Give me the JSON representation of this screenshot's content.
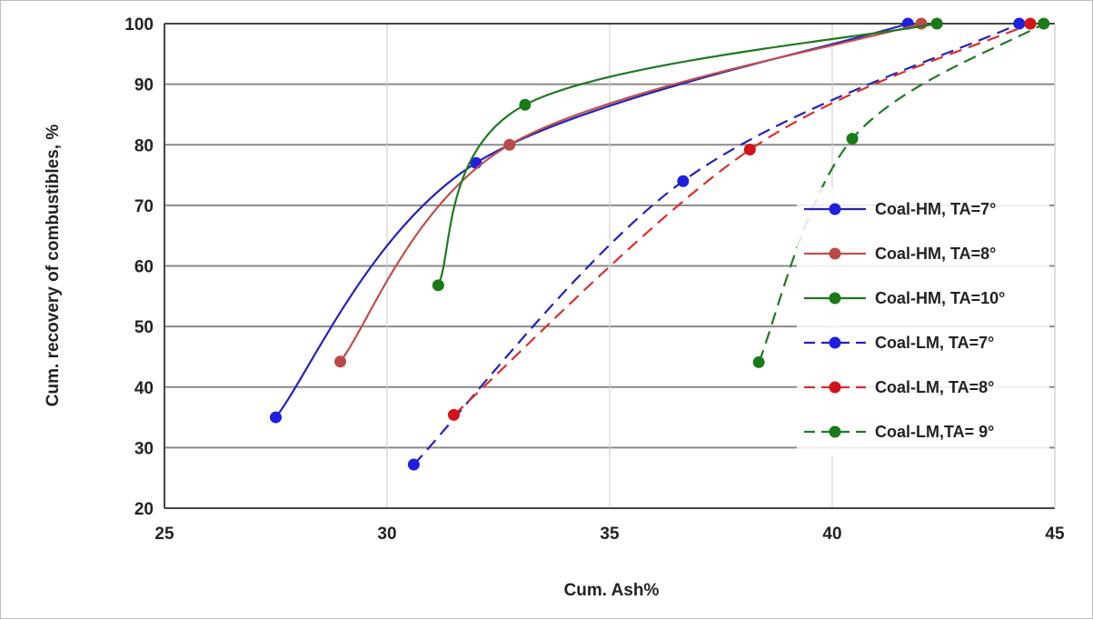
{
  "chart_data": {
    "type": "line",
    "title": "",
    "xlabel": "Cum. Ash%",
    "ylabel": "Cum. recovery of combustibles, %",
    "xlim": [
      25,
      45
    ],
    "ylim": [
      20,
      100
    ],
    "xticks": [
      25,
      30,
      35,
      40,
      45
    ],
    "yticks": [
      20,
      30,
      40,
      50,
      60,
      70,
      80,
      90,
      100
    ],
    "grid": true,
    "legend_position": "right",
    "series": [
      {
        "name": "Coal-HM, TA=7°",
        "color": "#2323b8",
        "marker_color": "#1f1fe0",
        "dash": "solid",
        "points": [
          [
            27.5,
            35
          ],
          [
            32.0,
            77
          ],
          [
            41.7,
            100
          ]
        ]
      },
      {
        "name": "Coal-HM, TA=8°",
        "color": "#c0504d",
        "marker_color": "#b94a48",
        "dash": "solid",
        "points": [
          [
            28.95,
            44.2
          ],
          [
            32.75,
            80
          ],
          [
            42.0,
            100
          ]
        ]
      },
      {
        "name": "Coal-HM, TA=10°",
        "color": "#1e7a1e",
        "marker_color": "#1a7a1a",
        "dash": "solid",
        "points": [
          [
            31.15,
            56.8
          ],
          [
            33.1,
            86.6
          ],
          [
            42.35,
            100
          ]
        ]
      },
      {
        "name": "Coal-LM, TA=7°",
        "color": "#2323b8",
        "marker_color": "#1f1fe0",
        "dash": "dashed",
        "points": [
          [
            30.6,
            27.2
          ],
          [
            36.65,
            74
          ],
          [
            44.2,
            100
          ]
        ]
      },
      {
        "name": "Coal-LM, TA=8°",
        "color": "#d9312b",
        "marker_color": "#d0141a",
        "dash": "dashed",
        "points": [
          [
            31.5,
            35.4
          ],
          [
            38.15,
            79.2
          ],
          [
            44.45,
            100
          ]
        ]
      },
      {
        "name": "Coal-LM,TA= 9°",
        "color": "#1e7a1e",
        "marker_color": "#1a7a1a",
        "dash": "dashed",
        "points": [
          [
            38.35,
            44.1
          ],
          [
            40.45,
            81
          ],
          [
            44.75,
            100
          ]
        ]
      }
    ]
  }
}
